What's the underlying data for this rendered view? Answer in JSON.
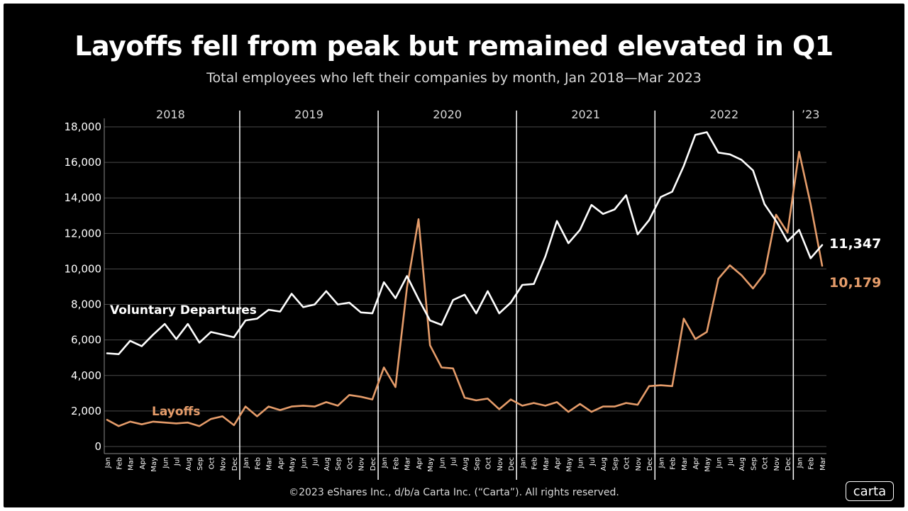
{
  "chart_data": {
    "type": "line",
    "title": "Layoffs fell from peak but remained elevated in Q1",
    "subtitle": "Total employees who left their companies by month, Jan 2018—Mar 2023",
    "footer": "©2023 eShares Inc., d/b/a Carta Inc. (“Carta”). All rights reserved.",
    "logo_text": "carta",
    "ylim": [
      0,
      18000
    ],
    "yticks": [
      0,
      2000,
      4000,
      6000,
      8000,
      10000,
      12000,
      14000,
      16000,
      18000
    ],
    "ytick_labels": [
      "0",
      "2,000",
      "4,000",
      "6,000",
      "8,000",
      "10,000",
      "12,000",
      "14,000",
      "16,000",
      "18,000"
    ],
    "grid": true,
    "years": [
      "2018",
      "2019",
      "2020",
      "2021",
      "2022",
      "’23"
    ],
    "months": [
      "Jan",
      "Feb",
      "Mar",
      "Apr",
      "May",
      "Jun",
      "Jul",
      "Aug",
      "Sep",
      "Oct",
      "Nov",
      "Dec"
    ],
    "series": [
      {
        "name": "Voluntary Departures",
        "color": "#ffffff",
        "end_label": "11,347",
        "values": [
          5250,
          5200,
          5950,
          5650,
          6300,
          6900,
          6050,
          6900,
          5850,
          6450,
          6300,
          6150,
          7100,
          7200,
          7700,
          7600,
          8600,
          7850,
          8000,
          8750,
          8000,
          8100,
          7550,
          7500,
          9250,
          8350,
          9600,
          8300,
          7100,
          6850,
          8250,
          8550,
          7500,
          8750,
          7500,
          8100,
          9100,
          9150,
          10700,
          12700,
          11450,
          12200,
          13600,
          13100,
          13350,
          14150,
          11950,
          12750,
          14050,
          14350,
          15800,
          17550,
          17700,
          16550,
          16450,
          16150,
          15550,
          13650,
          12700,
          11550,
          12200,
          10600,
          11347
        ]
      },
      {
        "name": "Layoffs",
        "color": "#e59c6a",
        "end_label": "10,179",
        "values": [
          1500,
          1150,
          1400,
          1250,
          1400,
          1350,
          1300,
          1350,
          1150,
          1550,
          1700,
          1200,
          2250,
          1700,
          2250,
          2050,
          2250,
          2300,
          2250,
          2500,
          2300,
          2900,
          2800,
          2650,
          4450,
          3350,
          8950,
          12800,
          5700,
          4450,
          4400,
          2750,
          2600,
          2700,
          2100,
          2650,
          2300,
          2450,
          2300,
          2500,
          1950,
          2400,
          1950,
          2250,
          2250,
          2450,
          2350,
          3400,
          3450,
          3400,
          7200,
          6050,
          6450,
          9450,
          10200,
          9650,
          8900,
          9750,
          13050,
          12050,
          16600,
          13650,
          10179
        ]
      }
    ]
  }
}
